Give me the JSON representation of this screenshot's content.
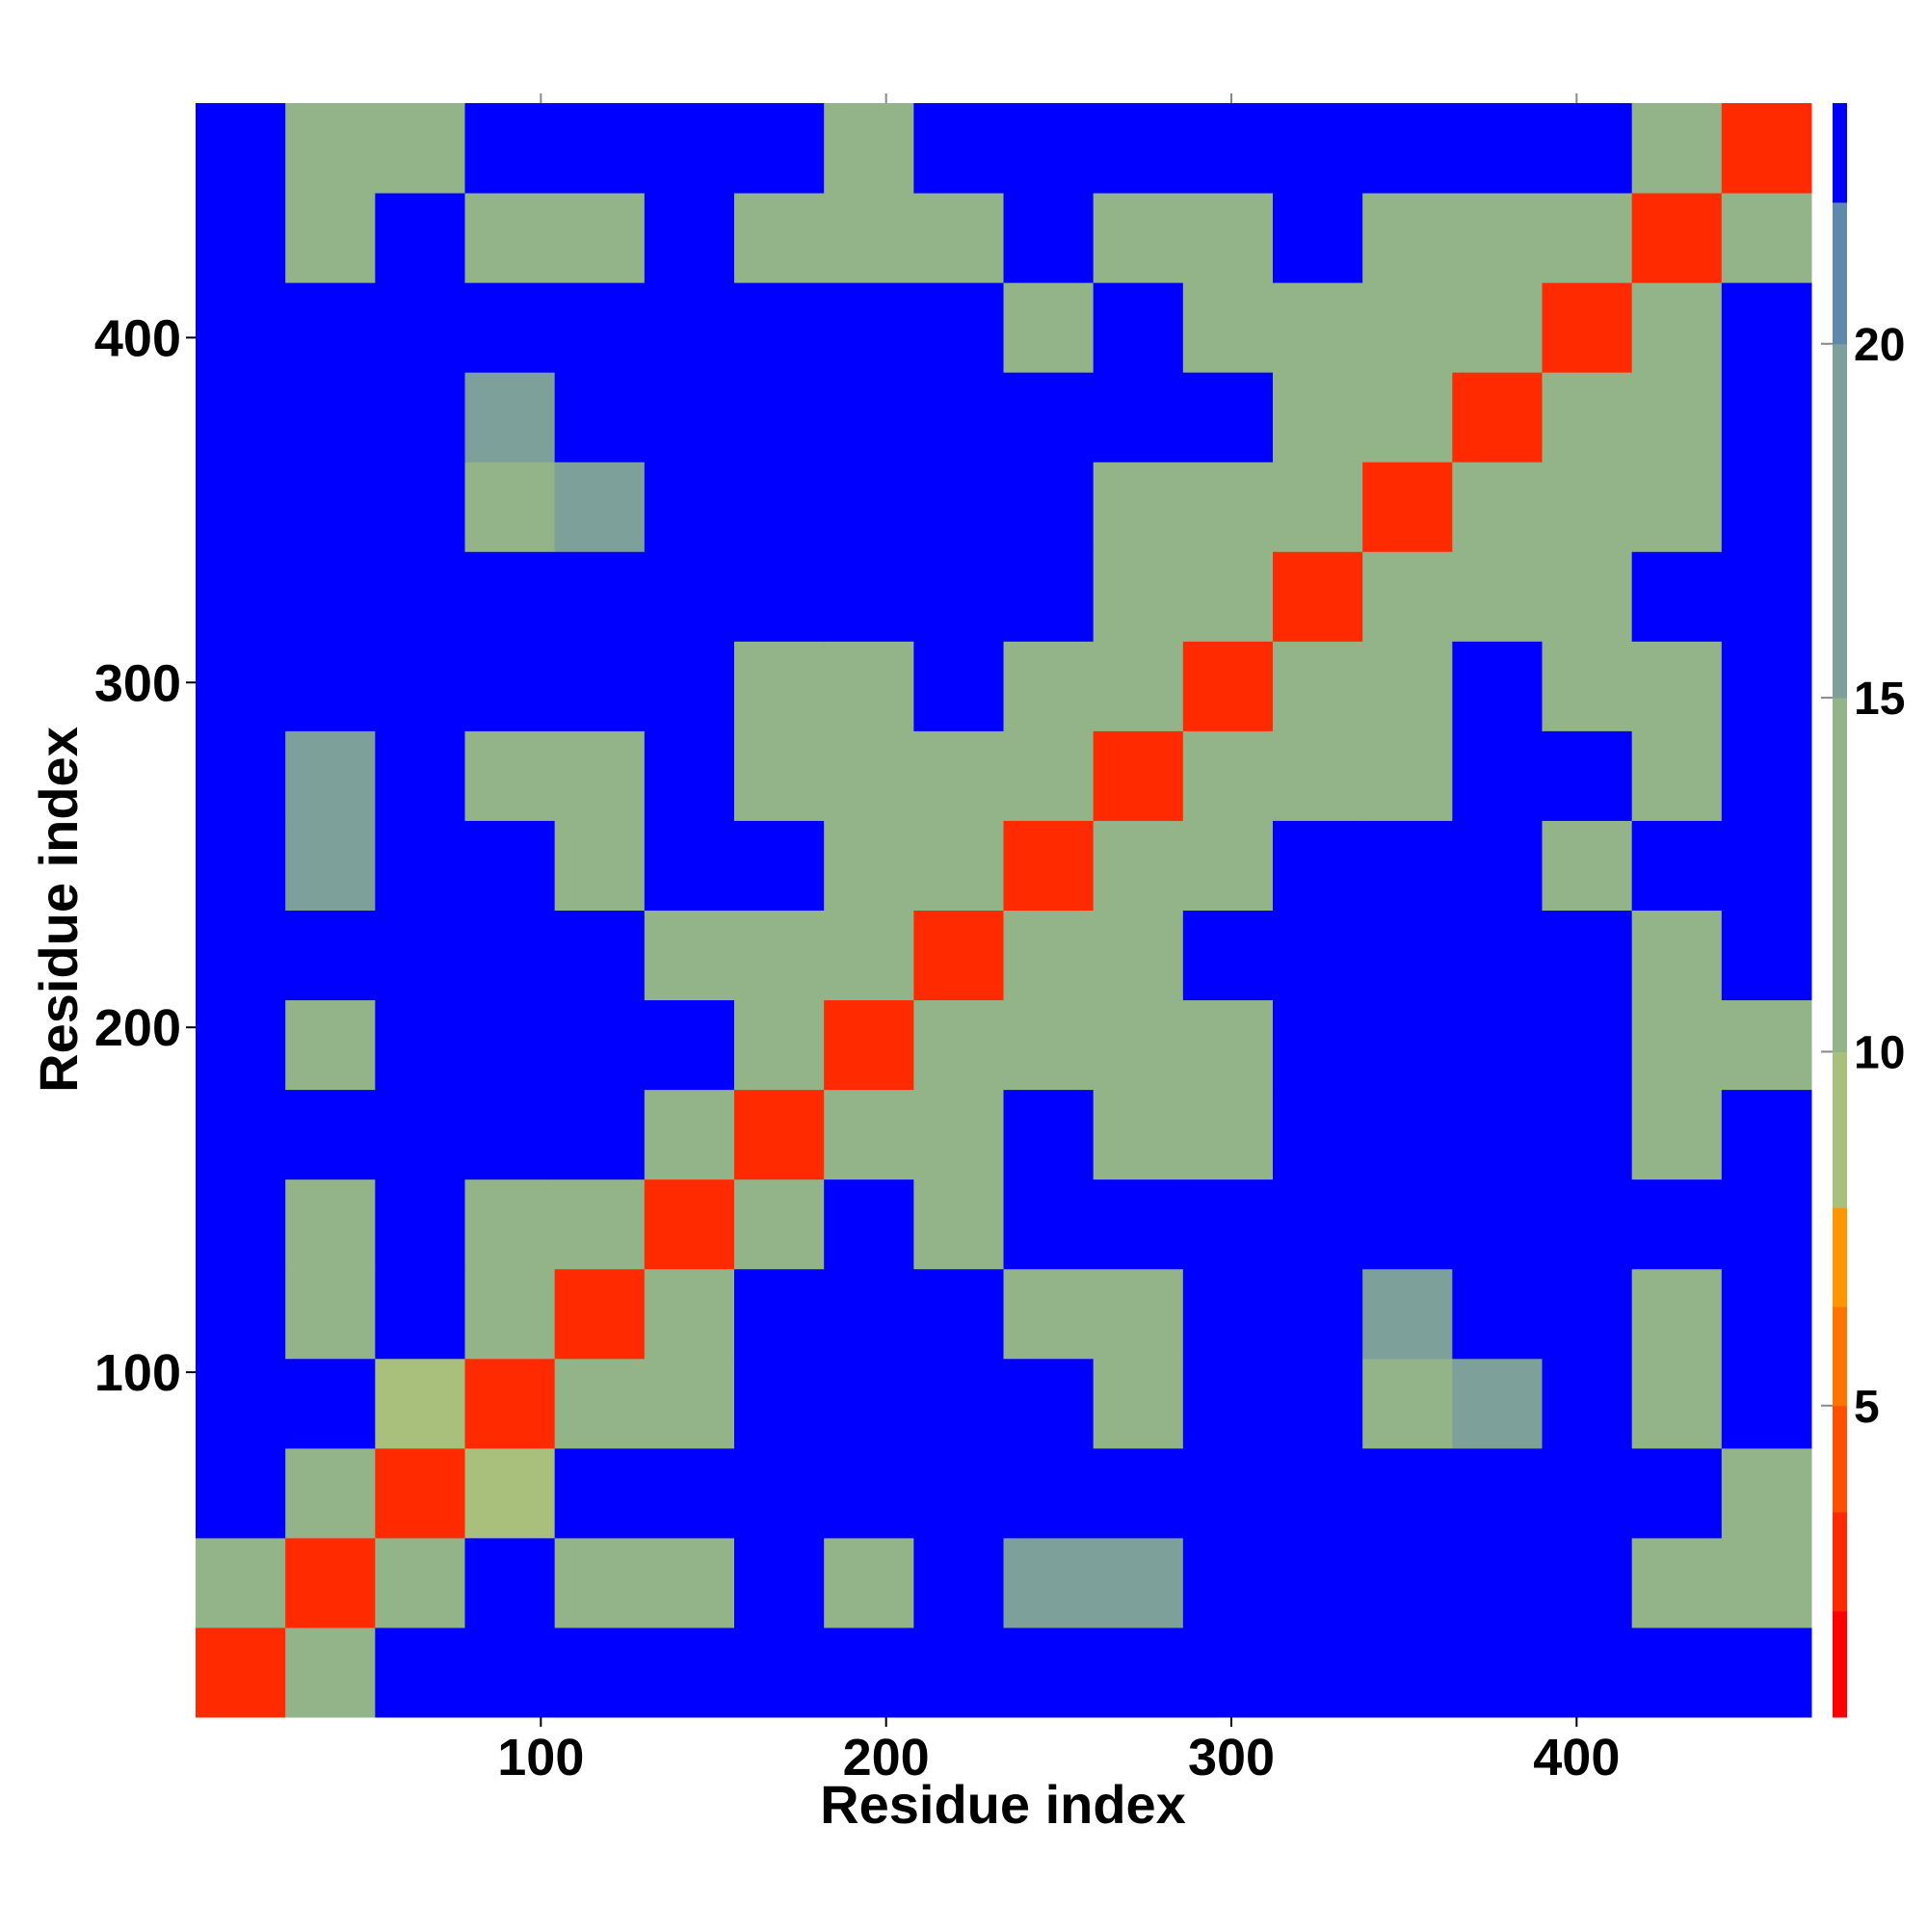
{
  "chart_data": {
    "type": "heatmap",
    "xlabel": "Residue index",
    "ylabel": "Residue index",
    "xlim": [
      0,
      468
    ],
    "ylim": [
      0,
      468
    ],
    "xticks": [
      100,
      200,
      300,
      400
    ],
    "yticks": [
      100,
      200,
      300,
      400
    ],
    "x": [
      13,
      39,
      65,
      91,
      117,
      143,
      169,
      195,
      221,
      247,
      273,
      299,
      325,
      351,
      377,
      403,
      429,
      455
    ],
    "y": [
      13,
      39,
      65,
      91,
      117,
      143,
      169,
      195,
      221,
      247,
      273,
      299,
      325,
      351,
      377,
      403,
      429,
      455
    ],
    "z": [
      [
        3,
        11,
        23,
        23,
        23,
        23,
        23,
        23,
        23,
        23,
        23,
        23,
        23,
        23,
        23,
        23,
        23,
        23
      ],
      [
        11,
        3,
        11,
        23,
        12,
        13,
        23,
        13,
        23,
        18,
        18,
        23,
        23,
        23,
        23,
        23,
        12,
        15
      ],
      [
        23,
        11,
        3,
        10,
        23,
        23,
        23,
        23,
        23,
        23,
        23,
        23,
        23,
        23,
        23,
        23,
        23,
        12
      ],
      [
        23,
        23,
        10,
        3,
        11,
        14,
        23,
        23,
        23,
        23,
        12,
        23,
        23,
        12,
        16,
        23,
        13,
        23
      ],
      [
        23,
        12,
        23,
        11,
        3,
        11,
        23,
        23,
        23,
        12,
        13,
        23,
        23,
        18,
        23,
        23,
        13,
        23
      ],
      [
        23,
        13,
        23,
        14,
        11,
        3,
        11,
        23,
        11,
        23,
        23,
        23,
        23,
        23,
        23,
        23,
        23,
        23
      ],
      [
        23,
        23,
        23,
        23,
        23,
        11,
        3,
        11,
        15,
        23,
        14,
        11,
        23,
        23,
        23,
        23,
        12,
        23
      ],
      [
        23,
        13,
        23,
        23,
        23,
        23,
        11,
        3,
        11,
        12,
        11,
        12,
        23,
        23,
        23,
        23,
        12,
        13
      ],
      [
        23,
        23,
        23,
        23,
        23,
        11,
        15,
        11,
        3,
        11,
        14,
        23,
        23,
        23,
        23,
        23,
        13,
        23
      ],
      [
        23,
        18,
        23,
        23,
        12,
        23,
        23,
        12,
        11,
        3,
        11,
        13,
        23,
        23,
        23,
        12,
        23,
        23
      ],
      [
        23,
        18,
        23,
        12,
        13,
        23,
        14,
        11,
        14,
        11,
        3,
        11,
        14,
        12,
        23,
        23,
        12,
        23
      ],
      [
        23,
        23,
        23,
        23,
        23,
        23,
        11,
        12,
        23,
        13,
        11,
        3,
        11,
        14,
        23,
        13,
        14,
        23
      ],
      [
        23,
        23,
        23,
        23,
        23,
        23,
        23,
        23,
        23,
        23,
        14,
        11,
        3,
        11,
        13,
        12,
        23,
        23
      ],
      [
        23,
        23,
        23,
        12,
        18,
        23,
        23,
        23,
        23,
        23,
        12,
        14,
        11,
        3,
        11,
        11,
        15,
        23
      ],
      [
        23,
        23,
        23,
        16,
        23,
        23,
        23,
        23,
        23,
        23,
        23,
        23,
        13,
        11,
        3,
        11,
        13,
        23
      ],
      [
        23,
        23,
        23,
        23,
        23,
        23,
        23,
        23,
        23,
        12,
        23,
        13,
        12,
        11,
        11,
        3,
        11,
        23
      ],
      [
        23,
        12,
        23,
        13,
        13,
        23,
        12,
        12,
        13,
        23,
        12,
        14,
        23,
        15,
        13,
        11,
        3,
        11
      ],
      [
        23,
        15,
        12,
        23,
        23,
        23,
        23,
        13,
        23,
        23,
        23,
        23,
        23,
        23,
        23,
        23,
        11,
        3
      ]
    ],
    "clim": [
      0.6,
      23.4
    ],
    "cticks": [
      5,
      10,
      15,
      20
    ],
    "colorbands": [
      {
        "from": 0.6,
        "to": 2.1,
        "color": "#ff0000"
      },
      {
        "from": 2.1,
        "to": 3.5,
        "color": "#ff2a00"
      },
      {
        "from": 3.5,
        "to": 5,
        "color": "#ff5000"
      },
      {
        "from": 5,
        "to": 6.4,
        "color": "#ff7300"
      },
      {
        "from": 6.4,
        "to": 7.8,
        "color": "#ff9600"
      },
      {
        "from": 7.8,
        "to": 10,
        "color": "#a9c07c"
      },
      {
        "from": 10,
        "to": 15,
        "color": "#93b388"
      },
      {
        "from": 15,
        "to": 20,
        "color": "#7ea09b"
      },
      {
        "from": 20,
        "to": 22,
        "color": "#5f88ad"
      },
      {
        "from": 22,
        "to": 23.4,
        "color": "#0000ff"
      }
    ]
  }
}
